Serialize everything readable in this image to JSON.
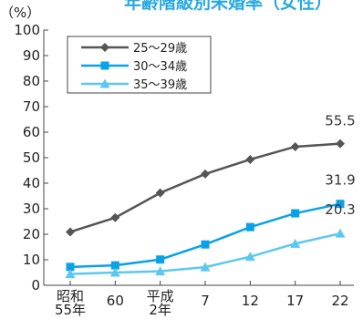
{
  "chart_data": {
    "type": "line",
    "title": "年齢階級別未婚率（女性）",
    "ylabel": "（%）",
    "ylim": [
      0,
      100
    ],
    "yticks": [
      0,
      10,
      20,
      30,
      40,
      50,
      60,
      70,
      80,
      90,
      100
    ],
    "categories": [
      [
        "昭和",
        "55年"
      ],
      [
        "60"
      ],
      [
        "平成",
        "2年"
      ],
      [
        "7"
      ],
      [
        "12"
      ],
      [
        "17"
      ],
      [
        "22"
      ]
    ],
    "series": [
      {
        "name": "25〜29歳",
        "color": "#555555",
        "marker": "diamond",
        "values": [
          20.9,
          26.5,
          36.2,
          43.6,
          49.3,
          54.3,
          55.5
        ],
        "end_label": "55.5"
      },
      {
        "name": "30〜34歳",
        "color": "#0aa2e6",
        "marker": "square",
        "values": [
          7.2,
          7.8,
          10.1,
          16.0,
          22.8,
          28.2,
          31.9
        ],
        "end_label": "31.9"
      },
      {
        "name": "35〜39歳",
        "color": "#5cc8f0",
        "marker": "triangle",
        "values": [
          4.4,
          5.0,
          5.5,
          7.1,
          11.2,
          16.3,
          20.3
        ],
        "end_label": "20.3"
      }
    ],
    "grid": false,
    "legend": "top-left"
  }
}
